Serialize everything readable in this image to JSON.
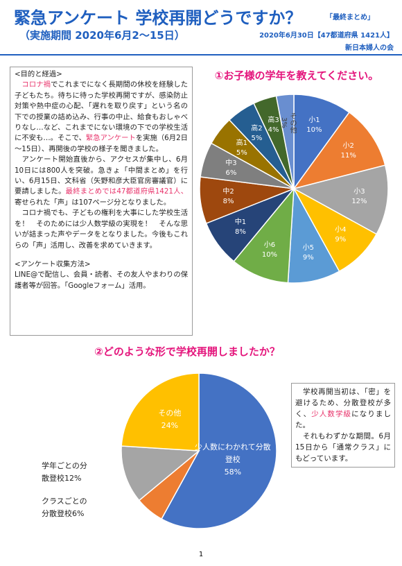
{
  "header": {
    "title": "緊急アンケート 学校再開どうですか？",
    "title_note": "「最終まとめ」",
    "period": "（実施期間 2020年6月2～15日）",
    "date": "2020年6月30日【47都道府県 1421人】",
    "organization": "新日本婦人の会"
  },
  "intro": {
    "heading": "<目的と経過>",
    "paragraphs": [
      [
        {
          "text": "　"
        },
        {
          "text": "コロナ禍",
          "color": "#e8336b"
        },
        {
          "text": "でこれまでになく長期間の休校を経験した子どもたち。待ちに待った学校再開ですが、感染防止対策や熱中症の心配、「遅れを取り戻す」という名の下での授業の詰め込み、行事の中止、給食もおしゃべりなし…など、これまでにない環境の下での学校生活に不安も…。そこで、"
        },
        {
          "text": "緊急アンケート",
          "color": "#e8336b"
        },
        {
          "text": "を実施（6月2日～15日）、再開後の学校の様子を聞きました。"
        }
      ],
      [
        {
          "text": "　アンケート開始直後から、アクセスが集中し、6月10日には800人を突破。急きょ「中間まとめ」を行い、6月15日、文科省（矢野和彦大臣官房審議官）に要請しました。"
        },
        {
          "text": "最終まとめでは47都道府県1421人、",
          "color": "#e8336b"
        },
        {
          "text": "寄せられた「声」は107ページ分となりました。"
        }
      ],
      [
        {
          "text": "　コロナ禍でも、子どもの権利を大事にした学校生活を！　そのためには少人数学級の実現を！　そんな思いが詰まった声やデータをとなりました。今後もこれらの「声」活用し、改善を求めていきます。"
        }
      ]
    ]
  },
  "method": {
    "heading": "<アンケート収集方法>",
    "text": "LINE@で配信し、会員・読者、その友人やまわりの保護者等が回答。「Googleフォーム」活用。"
  },
  "note": {
    "paragraphs": [
      [
        {
          "text": "　学校再開当初は、「密」を避けるため、分散登校が多く、"
        },
        {
          "text": "少人数学級",
          "color": "#e8336b"
        },
        {
          "text": "になりました。"
        }
      ],
      [
        {
          "text": "　それもわずかな期間。6月15日から「通常クラス」にもどっています。"
        }
      ]
    ]
  },
  "chart_data": [
    {
      "type": "pie",
      "title": "①お子様の学年を教えてください。",
      "categories": [
        "小1",
        "小2",
        "小3",
        "小4",
        "小5",
        "小6",
        "中1",
        "中2",
        "中3",
        "高1",
        "高2",
        "高3",
        "その他"
      ],
      "values": [
        10,
        11,
        12,
        9,
        9,
        10,
        8,
        8,
        6,
        5,
        5,
        4,
        3
      ],
      "value_labels": [
        "10%",
        "11%",
        "12%",
        "9%",
        "9%",
        "10%",
        "8%",
        "8%",
        "6%",
        "5%",
        "5%",
        "4%",
        "3%"
      ],
      "colors": [
        "#4472c4",
        "#ed7d31",
        "#a5a5a5",
        "#ffc000",
        "#5b9bd5",
        "#70ad47",
        "#264478",
        "#9e480e",
        "#7f7f7f",
        "#997300",
        "#255e91",
        "#43682b",
        "#698ed0"
      ]
    },
    {
      "type": "pie",
      "title": "②どのような形で学校再開しましたか？",
      "categories": [
        "少人数にわかれて分散登校",
        "クラスごとの分散登校",
        "学年ごとの分散登校",
        "その他"
      ],
      "values": [
        58,
        6,
        12,
        24
      ],
      "value_labels": [
        "58%",
        "6%",
        "12%",
        "24%"
      ],
      "colors": [
        "#4472c4",
        "#ed7d31",
        "#a5a5a5",
        "#ffc000"
      ]
    }
  ],
  "page_number": "1"
}
